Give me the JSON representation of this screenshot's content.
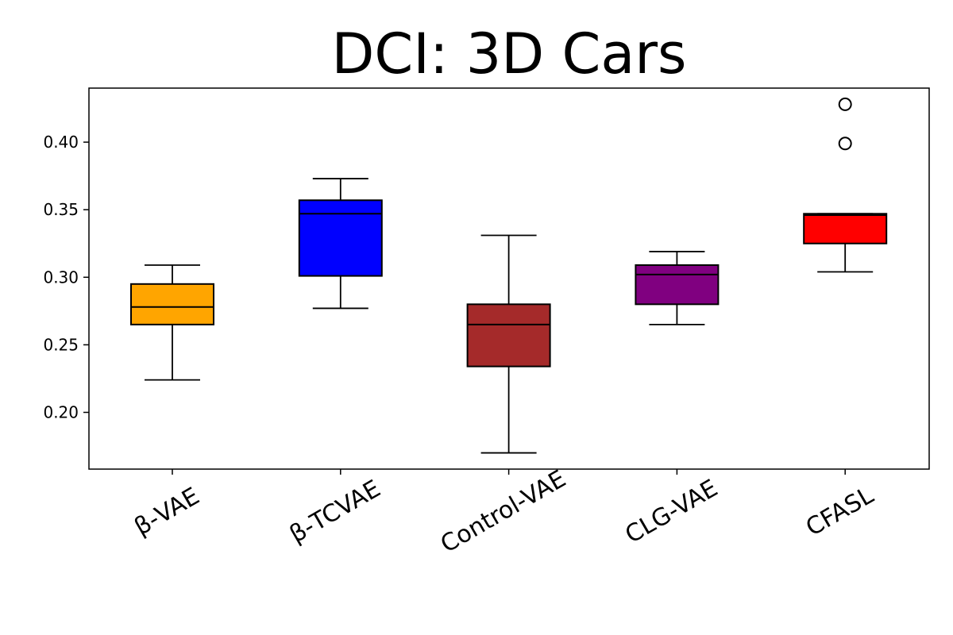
{
  "chart_data": {
    "type": "box",
    "title": "DCI: 3D Cars",
    "xlabel": "",
    "ylabel": "",
    "ylim": [
      0.158,
      0.44
    ],
    "yticks": [
      0.2,
      0.25,
      0.3,
      0.35,
      0.4
    ],
    "ytick_labels": [
      "0.20",
      "0.25",
      "0.30",
      "0.35",
      "0.40"
    ],
    "grid": false,
    "legend": "none",
    "categories": [
      "β-VAE",
      "β-TCVAE",
      "Control-VAE",
      "CLG-VAE",
      "CFASL"
    ],
    "series": [
      {
        "category": "β-VAE",
        "color": "#ffa500",
        "whisker_low": 0.224,
        "q1": 0.265,
        "median": 0.278,
        "q3": 0.295,
        "whisker_high": 0.309,
        "outliers": []
      },
      {
        "category": "β-TCVAE",
        "color": "#0000ff",
        "whisker_low": 0.277,
        "q1": 0.301,
        "median": 0.347,
        "q3": 0.357,
        "whisker_high": 0.373,
        "outliers": []
      },
      {
        "category": "Control-VAE",
        "color": "#a52a2a",
        "whisker_low": 0.17,
        "q1": 0.234,
        "median": 0.265,
        "q3": 0.28,
        "whisker_high": 0.331,
        "outliers": []
      },
      {
        "category": "CLG-VAE",
        "color": "#800080",
        "whisker_low": 0.265,
        "q1": 0.28,
        "median": 0.302,
        "q3": 0.309,
        "whisker_high": 0.319,
        "outliers": []
      },
      {
        "category": "CFASL",
        "color": "#ff0000",
        "whisker_low": 0.304,
        "q1": 0.325,
        "median": 0.346,
        "q3": 0.347,
        "whisker_high": 0.347,
        "outliers": [
          0.399,
          0.428
        ]
      }
    ]
  }
}
